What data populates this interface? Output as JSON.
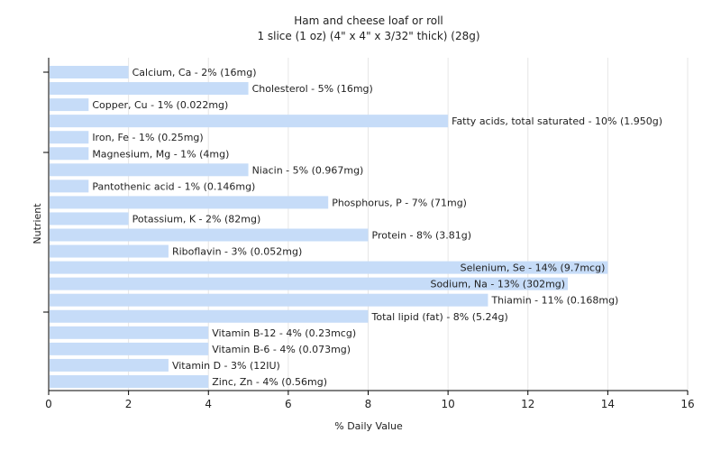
{
  "chart_data": {
    "type": "bar",
    "orientation": "horizontal",
    "title": "Ham and cheese loaf or roll",
    "subtitle": "1 slice (1 oz) (4\" x 4\" x 3/32\" thick) (28g)",
    "xlabel": "% Daily Value",
    "ylabel": "Nutrient",
    "xlim": [
      0,
      16
    ],
    "xticks": [
      0,
      2,
      4,
      6,
      8,
      10,
      12,
      14,
      16
    ],
    "grid": true,
    "bar_color": "#c6dcf8",
    "bars": [
      {
        "label": "Calcium, Ca - 2% (16mg)",
        "value": 2
      },
      {
        "label": "Cholesterol - 5% (16mg)",
        "value": 5
      },
      {
        "label": "Copper, Cu - 1% (0.022mg)",
        "value": 1
      },
      {
        "label": "Fatty acids, total saturated - 10% (1.950g)",
        "value": 10
      },
      {
        "label": "Iron, Fe - 1% (0.25mg)",
        "value": 1
      },
      {
        "label": "Magnesium, Mg - 1% (4mg)",
        "value": 1
      },
      {
        "label": "Niacin - 5% (0.967mg)",
        "value": 5
      },
      {
        "label": "Pantothenic acid - 1% (0.146mg)",
        "value": 1
      },
      {
        "label": "Phosphorus, P - 7% (71mg)",
        "value": 7
      },
      {
        "label": "Potassium, K - 2% (82mg)",
        "value": 2
      },
      {
        "label": "Protein - 8% (3.81g)",
        "value": 8
      },
      {
        "label": "Riboflavin - 3% (0.052mg)",
        "value": 3
      },
      {
        "label": "Selenium, Se - 14% (9.7mcg)",
        "value": 14
      },
      {
        "label": "Sodium, Na - 13% (302mg)",
        "value": 13
      },
      {
        "label": "Thiamin - 11% (0.168mg)",
        "value": 11
      },
      {
        "label": "Total lipid (fat) - 8% (5.24g)",
        "value": 8
      },
      {
        "label": "Vitamin B-12 - 4% (0.23mcg)",
        "value": 4
      },
      {
        "label": "Vitamin B-6 - 4% (0.073mg)",
        "value": 4
      },
      {
        "label": "Vitamin D - 3% (12IU)",
        "value": 3
      },
      {
        "label": "Zinc, Zn - 4% (0.56mg)",
        "value": 4
      }
    ]
  }
}
